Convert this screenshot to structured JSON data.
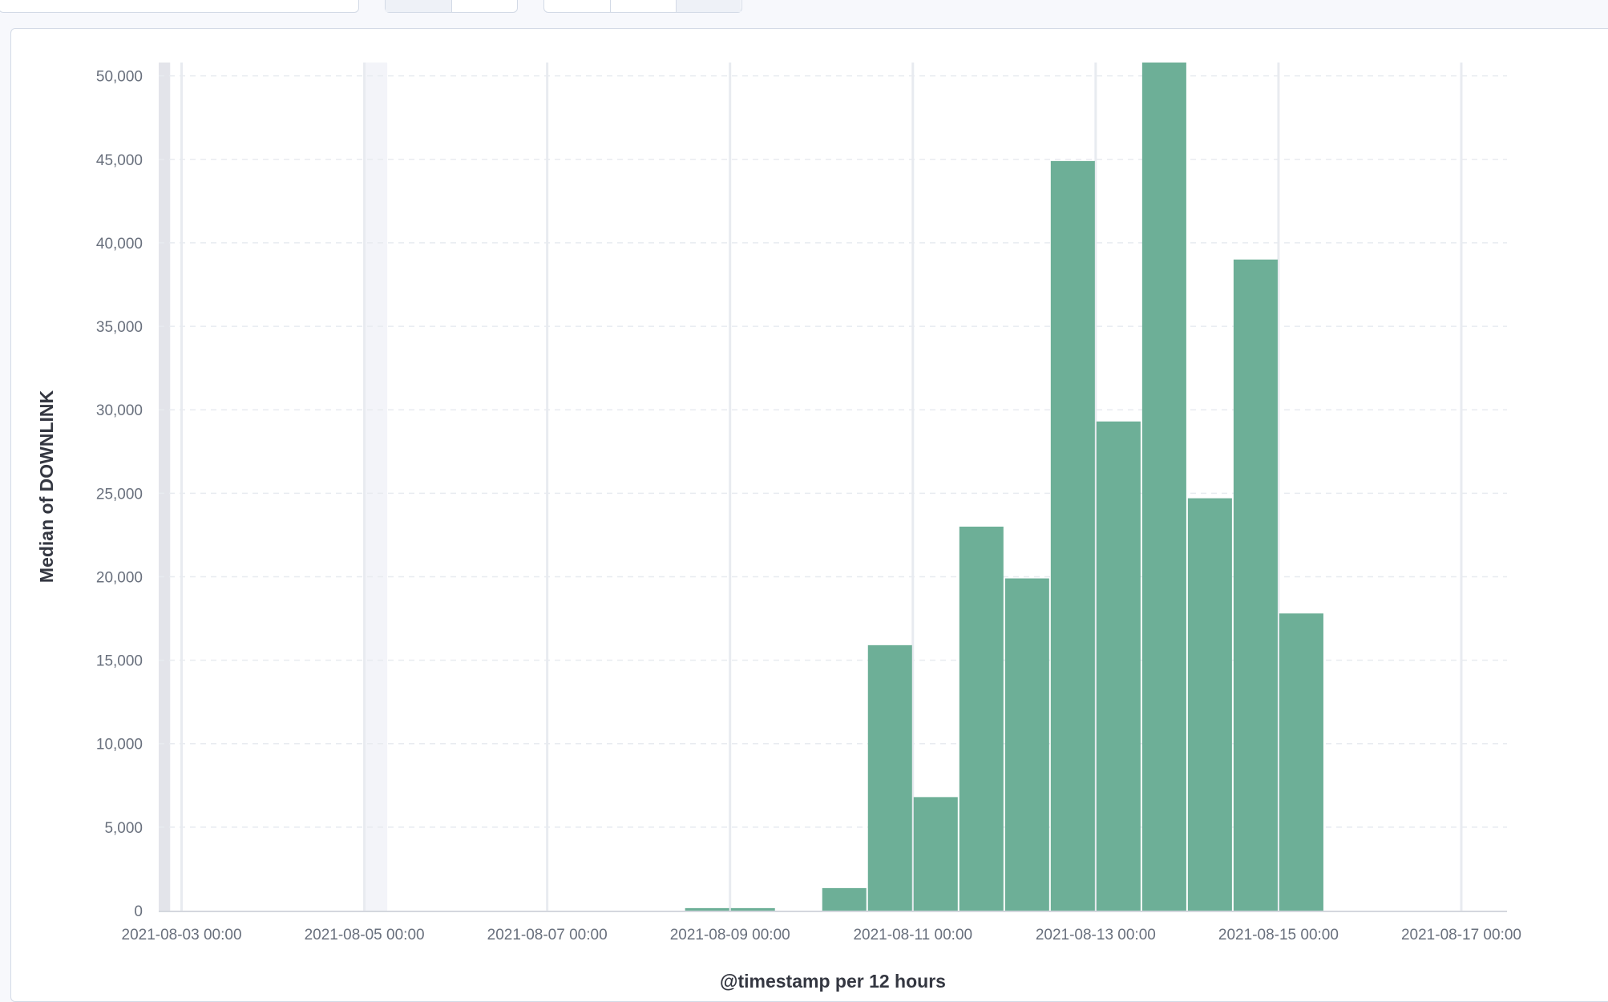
{
  "colors": {
    "bar": "#6daf97",
    "grid": "#e8ebf0",
    "axis": "#c5cad3",
    "tick_text": "#69707d",
    "title_text": "#343741"
  },
  "chart_data": {
    "type": "bar",
    "title": "",
    "xlabel": "@timestamp per 12 hours",
    "ylabel": "Median of DOWNLINK",
    "interval_hours": 12,
    "xlim": [
      "2021-08-02 18:00",
      "2021-08-17 12:00"
    ],
    "ylim": [
      0,
      50800
    ],
    "grid": "horizontal dashed",
    "x_ticks": [
      "2021-08-03 00:00",
      "2021-08-05 00:00",
      "2021-08-07 00:00",
      "2021-08-09 00:00",
      "2021-08-11 00:00",
      "2021-08-13 00:00",
      "2021-08-15 00:00",
      "2021-08-17 00:00"
    ],
    "y_ticks": [
      {
        "value": 0,
        "label": "0"
      },
      {
        "value": 5000,
        "label": "5,000"
      },
      {
        "value": 10000,
        "label": "10,000"
      },
      {
        "value": 15000,
        "label": "15,000"
      },
      {
        "value": 20000,
        "label": "20,000"
      },
      {
        "value": 25000,
        "label": "25,000"
      },
      {
        "value": 30000,
        "label": "30,000"
      },
      {
        "value": 35000,
        "label": "35,000"
      },
      {
        "value": 40000,
        "label": "40,000"
      },
      {
        "value": 45000,
        "label": "45,000"
      },
      {
        "value": 50000,
        "label": "50,000"
      }
    ],
    "shaded_ranges": [
      {
        "start": "2021-08-02 18:00",
        "end": "2021-08-02 21:00",
        "color": "#e3e4ea"
      },
      {
        "start": "2021-08-05 00:00",
        "end": "2021-08-05 06:00",
        "color": "#f3f4f9"
      }
    ],
    "bars": [
      {
        "start": "2021-08-08 12:00",
        "value": 150
      },
      {
        "start": "2021-08-09 00:00",
        "value": 150
      },
      {
        "start": "2021-08-10 00:00",
        "value": 1350
      },
      {
        "start": "2021-08-10 12:00",
        "value": 15900
      },
      {
        "start": "2021-08-11 00:00",
        "value": 6800
      },
      {
        "start": "2021-08-11 12:00",
        "value": 23000
      },
      {
        "start": "2021-08-12 00:00",
        "value": 19900
      },
      {
        "start": "2021-08-12 12:00",
        "value": 44900
      },
      {
        "start": "2021-08-13 00:00",
        "value": 29300
      },
      {
        "start": "2021-08-13 12:00",
        "value": 50800
      },
      {
        "start": "2021-08-14 00:00",
        "value": 24700
      },
      {
        "start": "2021-08-14 12:00",
        "value": 39000
      },
      {
        "start": "2021-08-15 00:00",
        "value": 17800
      }
    ]
  }
}
